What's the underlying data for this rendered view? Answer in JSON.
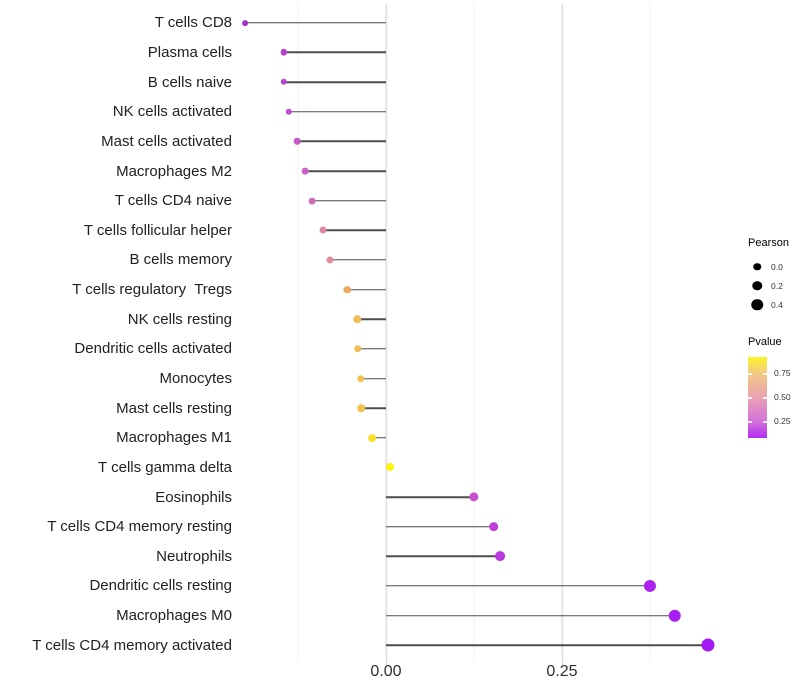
{
  "chart_data": {
    "type": "scatter",
    "variant": "horizontal-lollipop",
    "title": "",
    "xlabel": "",
    "ylabel": "",
    "x_axis": {
      "tick_labels": [
        "0.00",
        "0.25"
      ],
      "tick_values": [
        0.0,
        0.25
      ],
      "range": [
        -0.21,
        0.4773
      ],
      "major_gridlines": [
        0.0,
        0.25
      ],
      "minor_gridlines": [
        -0.125,
        0.125,
        0.375
      ]
    },
    "baseline": 0.0,
    "segment_color": "#4d4d4d",
    "categories": [
      "T cells CD8",
      "Plasma cells",
      "B cells naive",
      "NK cells activated",
      "Mast cells activated",
      "Macrophages M2",
      "T cells CD4 naive",
      "T cells follicular helper",
      "B cells memory",
      "T cells regulatory  Tregs",
      "NK cells resting",
      "Dendritic cells activated",
      "Monocytes",
      "Mast cells resting",
      "Macrophages M1",
      "T cells gamma delta",
      "Eosinophils",
      "T cells CD4 memory resting",
      "Neutrophils",
      "Dendritic cells resting",
      "Macrophages M0",
      "T cells CD4 memory activated"
    ],
    "points": [
      {
        "label": "T cells CD8",
        "pearson": -0.2,
        "pvalue_approx": 0.15,
        "color": "#A132CC"
      },
      {
        "label": "Plasma cells",
        "pearson": -0.145,
        "pvalue_approx": 0.22,
        "color": "#B73FD2"
      },
      {
        "label": "B cells naive",
        "pearson": -0.145,
        "pvalue_approx": 0.23,
        "color": "#B843D0"
      },
      {
        "label": "NK cells activated",
        "pearson": -0.138,
        "pvalue_approx": 0.25,
        "color": "#BC4BCE"
      },
      {
        "label": "Mast cells activated",
        "pearson": -0.126,
        "pvalue_approx": 0.3,
        "color": "#C558C8"
      },
      {
        "label": "Macrophages M2",
        "pearson": -0.115,
        "pvalue_approx": 0.33,
        "color": "#C962C4"
      },
      {
        "label": "T cells CD4 naive",
        "pearson": -0.105,
        "pvalue_approx": 0.38,
        "color": "#CE70BA"
      },
      {
        "label": "T cells follicular helper",
        "pearson": -0.09,
        "pvalue_approx": 0.46,
        "color": "#DD89A0"
      },
      {
        "label": "B cells memory",
        "pearson": -0.08,
        "pvalue_approx": 0.5,
        "color": "#E18D96"
      },
      {
        "label": "T cells regulatory  Tregs",
        "pearson": -0.055,
        "pvalue_approx": 0.63,
        "color": "#ECA763"
      },
      {
        "label": "NK cells resting",
        "pearson": -0.041,
        "pvalue_approx": 0.7,
        "color": "#F0BE58"
      },
      {
        "label": "Dendritic cells activated",
        "pearson": -0.04,
        "pvalue_approx": 0.7,
        "color": "#F0BE58"
      },
      {
        "label": "Monocytes",
        "pearson": -0.036,
        "pvalue_approx": 0.72,
        "color": "#F2C350"
      },
      {
        "label": "Mast cells resting",
        "pearson": -0.035,
        "pvalue_approx": 0.72,
        "color": "#F2C350"
      },
      {
        "label": "Macrophages M1",
        "pearson": -0.02,
        "pvalue_approx": 0.83,
        "color": "#F7DF2E"
      },
      {
        "label": "T cells gamma delta",
        "pearson": 0.005,
        "pvalue_approx": 0.93,
        "color": "#FDF50A"
      },
      {
        "label": "Eosinophils",
        "pearson": 0.125,
        "pvalue_approx": 0.27,
        "color": "#C653CE"
      },
      {
        "label": "T cells CD4 memory resting",
        "pearson": 0.153,
        "pvalue_approx": 0.2,
        "color": "#BC3FDA"
      },
      {
        "label": "Neutrophils",
        "pearson": 0.162,
        "pvalue_approx": 0.19,
        "color": "#B93ADE"
      },
      {
        "label": "Dendritic cells resting",
        "pearson": 0.375,
        "pvalue_approx": 0.06,
        "color": "#A922F0"
      },
      {
        "label": "Macrophages M0",
        "pearson": 0.41,
        "pvalue_approx": 0.05,
        "color": "#A61EF2"
      },
      {
        "label": "T cells CD4 memory activated",
        "pearson": 0.457,
        "pvalue_approx": 0.04,
        "color": "#A41AF4"
      }
    ],
    "legend": {
      "pearson": {
        "title": "Pearson",
        "dot_color": "#000000",
        "sizes": [
          {
            "label": "0.0",
            "value": 0.0
          },
          {
            "label": "0.2",
            "value": 0.2
          },
          {
            "label": "0.4",
            "value": 0.4
          }
        ]
      },
      "pvalue": {
        "title": "Pvalue",
        "tick_labels": [
          "0.75",
          "0.50",
          "0.25"
        ],
        "tick_values": [
          0.75,
          0.5,
          0.25
        ],
        "gradient_colors": [
          "#B02CF0",
          "#D470DC",
          "#E9A2B2",
          "#F2C985",
          "#FAF62B"
        ],
        "gradient_values": [
          0.08,
          0.25,
          0.5,
          0.75,
          0.92
        ]
      }
    }
  }
}
